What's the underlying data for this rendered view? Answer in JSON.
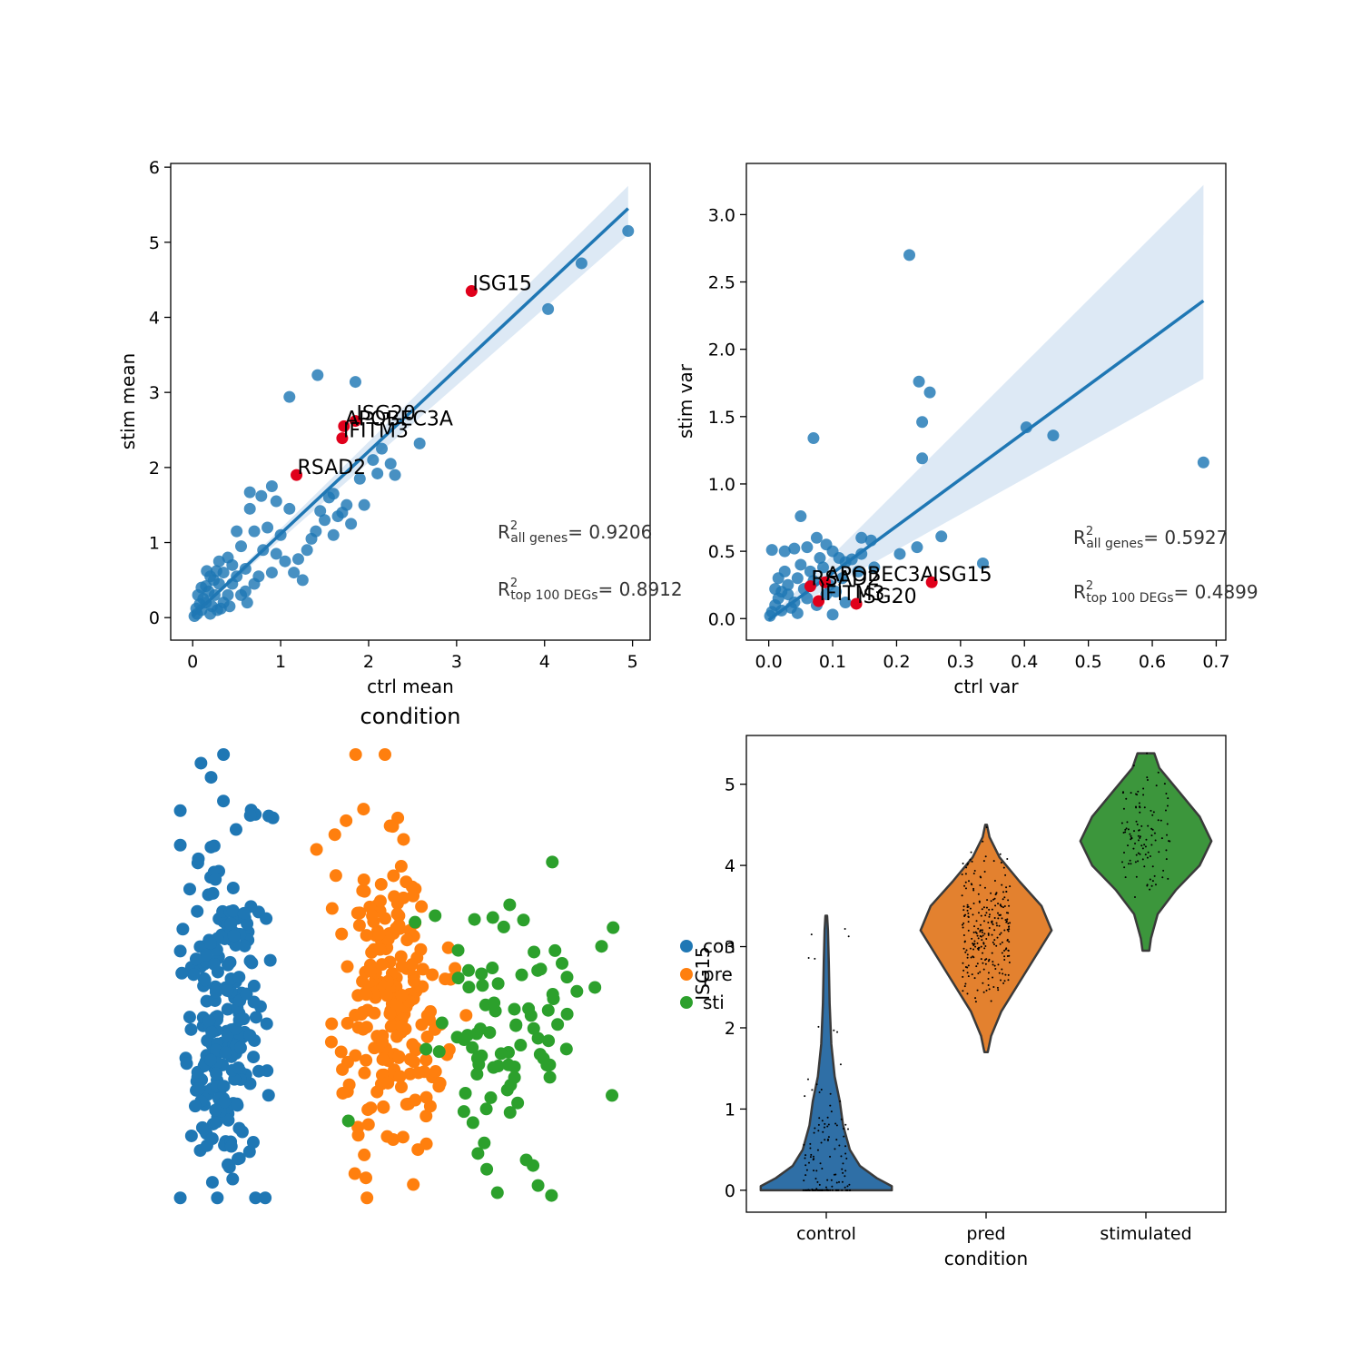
{
  "colors": {
    "blue": "#1f77b4",
    "orange": "#ff7f0e",
    "green": "#2ca02c",
    "highlight": "#e0001b",
    "band": "#c6dbef",
    "violin_blue": "#2f6fa6",
    "violin_orange": "#e3812f",
    "violin_green": "#3c963c"
  },
  "chart_data": [
    {
      "type": "scatter",
      "xlabel": "ctrl mean",
      "ylabel": "stim mean",
      "xlim": [
        -0.25,
        5.2
      ],
      "ylim": [
        -0.3,
        6.05
      ],
      "xticks": [
        0,
        1,
        2,
        3,
        4,
        5
      ],
      "yticks": [
        0,
        1,
        2,
        3,
        4,
        5,
        6
      ],
      "regression": {
        "x0": 0,
        "y0": 0.02,
        "x1": 4.95,
        "y1": 5.45,
        "band_hi": 5.75,
        "band_lo": 5.1
      },
      "points": [
        [
          4.95,
          5.15
        ],
        [
          4.42,
          4.72
        ],
        [
          4.04,
          4.11
        ],
        [
          1.42,
          3.23
        ],
        [
          1.85,
          3.14
        ],
        [
          1.1,
          2.94
        ],
        [
          2.58,
          2.32
        ],
        [
          2.05,
          2.1
        ],
        [
          2.1,
          1.92
        ],
        [
          1.9,
          1.85
        ],
        [
          2.15,
          2.25
        ],
        [
          2.25,
          2.05
        ],
        [
          1.6,
          1.65
        ],
        [
          1.55,
          1.6
        ],
        [
          1.95,
          1.5
        ],
        [
          1.45,
          1.42
        ],
        [
          0.9,
          1.75
        ],
        [
          0.95,
          1.55
        ],
        [
          1.4,
          1.15
        ],
        [
          1.0,
          1.1
        ],
        [
          1.35,
          1.05
        ],
        [
          1.25,
          0.5
        ],
        [
          1.2,
          0.78
        ],
        [
          0.65,
          1.67
        ],
        [
          0.78,
          1.62
        ],
        [
          0.65,
          1.45
        ],
        [
          1.1,
          1.45
        ],
        [
          0.95,
          0.85
        ],
        [
          0.7,
          1.15
        ],
        [
          0.55,
          0.95
        ],
        [
          0.5,
          1.15
        ],
        [
          0.4,
          0.8
        ],
        [
          0.3,
          0.75
        ],
        [
          0.2,
          0.55
        ],
        [
          0.35,
          0.6
        ],
        [
          0.45,
          0.45
        ],
        [
          0.6,
          0.65
        ],
        [
          0.8,
          0.9
        ],
        [
          0.85,
          1.2
        ],
        [
          1.05,
          0.75
        ],
        [
          1.15,
          0.6
        ],
        [
          1.3,
          0.9
        ],
        [
          0.75,
          0.55
        ],
        [
          0.25,
          0.3
        ],
        [
          0.15,
          0.2
        ],
        [
          0.1,
          0.1
        ],
        [
          0.05,
          0.05
        ],
        [
          0.02,
          0.02
        ],
        [
          0.3,
          0.45
        ],
        [
          0.18,
          0.35
        ],
        [
          0.22,
          0.15
        ],
        [
          0.12,
          0.25
        ],
        [
          0.4,
          0.3
        ],
        [
          0.5,
          0.55
        ],
        [
          0.08,
          0.18
        ],
        [
          0.28,
          0.1
        ],
        [
          0.35,
          0.2
        ],
        [
          0.15,
          0.42
        ],
        [
          0.6,
          0.35
        ],
        [
          0.06,
          0.3
        ],
        [
          0.45,
          0.7
        ],
        [
          0.7,
          0.45
        ],
        [
          1.5,
          1.3
        ],
        [
          1.65,
          1.35
        ],
        [
          1.75,
          1.5
        ],
        [
          1.8,
          1.25
        ],
        [
          1.7,
          1.4
        ],
        [
          2.3,
          1.9
        ],
        [
          0.9,
          0.6
        ],
        [
          1.6,
          1.1
        ],
        [
          0.55,
          0.3
        ],
        [
          0.2,
          0.05
        ],
        [
          0.32,
          0.12
        ],
        [
          0.04,
          0.12
        ],
        [
          0.24,
          0.5
        ],
        [
          0.1,
          0.4
        ],
        [
          0.42,
          0.15
        ],
        [
          0.62,
          0.2
        ],
        [
          0.16,
          0.62
        ],
        [
          0.27,
          0.62
        ]
      ],
      "highlights": [
        {
          "label": "ISG15",
          "x": 3.17,
          "y": 4.35
        },
        {
          "label": "ISG20",
          "x": 1.85,
          "y": 2.62
        },
        {
          "label": "APOBEC3A",
          "x": 1.72,
          "y": 2.55
        },
        {
          "label": "IFITM3",
          "x": 1.7,
          "y": 2.39
        },
        {
          "label": "RSAD2",
          "x": 1.18,
          "y": 1.9
        }
      ],
      "r2_all_label": "all genes",
      "r2_all_value": "= 0.9206",
      "r2_top_label": "top 100 DEGs",
      "r2_top_value": "= 0.8912"
    },
    {
      "type": "scatter",
      "xlabel": "ctrl var",
      "ylabel": "stim var",
      "xlim": [
        -0.035,
        0.715
      ],
      "ylim": [
        -0.16,
        3.38
      ],
      "xticks": [
        0.0,
        0.1,
        0.2,
        0.3,
        0.4,
        0.5,
        0.6,
        0.7
      ],
      "yticks": [
        0.0,
        0.5,
        1.0,
        1.5,
        2.0,
        2.5,
        3.0
      ],
      "regression": {
        "x0": 0,
        "y0": -0.01,
        "x1": 0.68,
        "y1": 2.36,
        "band_hi": 3.22,
        "band_lo": 1.78
      },
      "points": [
        [
          0.22,
          2.7
        ],
        [
          0.235,
          1.76
        ],
        [
          0.252,
          1.68
        ],
        [
          0.24,
          1.46
        ],
        [
          0.07,
          1.34
        ],
        [
          0.24,
          1.19
        ],
        [
          0.403,
          1.42
        ],
        [
          0.445,
          1.36
        ],
        [
          0.68,
          1.16
        ],
        [
          0.335,
          0.41
        ],
        [
          0.27,
          0.61
        ],
        [
          0.232,
          0.53
        ],
        [
          0.205,
          0.48
        ],
        [
          0.145,
          0.6
        ],
        [
          0.16,
          0.58
        ],
        [
          0.145,
          0.48
        ],
        [
          0.05,
          0.76
        ],
        [
          0.005,
          0.51
        ],
        [
          0.025,
          0.5
        ],
        [
          0.04,
          0.52
        ],
        [
          0.06,
          0.53
        ],
        [
          0.075,
          0.6
        ],
        [
          0.09,
          0.55
        ],
        [
          0.1,
          0.5
        ],
        [
          0.11,
          0.45
        ],
        [
          0.12,
          0.42
        ],
        [
          0.13,
          0.44
        ],
        [
          0.085,
          0.38
        ],
        [
          0.065,
          0.35
        ],
        [
          0.045,
          0.3
        ],
        [
          0.03,
          0.25
        ],
        [
          0.02,
          0.2
        ],
        [
          0.015,
          0.15
        ],
        [
          0.01,
          0.1
        ],
        [
          0.005,
          0.05
        ],
        [
          0.002,
          0.02
        ],
        [
          0.055,
          0.22
        ],
        [
          0.04,
          0.12
        ],
        [
          0.025,
          0.35
        ],
        [
          0.07,
          0.28
        ],
        [
          0.095,
          0.25
        ],
        [
          0.105,
          0.2
        ],
        [
          0.035,
          0.08
        ],
        [
          0.015,
          0.3
        ],
        [
          0.06,
          0.15
        ],
        [
          0.1,
          0.03
        ],
        [
          0.12,
          0.12
        ],
        [
          0.08,
          0.45
        ],
        [
          0.05,
          0.4
        ],
        [
          0.165,
          0.38
        ],
        [
          0.02,
          0.06
        ],
        [
          0.03,
          0.18
        ],
        [
          0.045,
          0.04
        ],
        [
          0.01,
          0.22
        ],
        [
          0.075,
          0.1
        ],
        [
          0.14,
          0.35
        ],
        [
          0.115,
          0.3
        ],
        [
          0.09,
          0.18
        ]
      ],
      "highlights": [
        {
          "label": "APOBEC3A",
          "x": 0.088,
          "y": 0.27
        },
        {
          "label": "ISG15",
          "x": 0.255,
          "y": 0.27
        },
        {
          "label": "RSAD2",
          "x": 0.065,
          "y": 0.24
        },
        {
          "label": "IFITM3",
          "x": 0.078,
          "y": 0.13
        },
        {
          "label": "ISG20",
          "x": 0.137,
          "y": 0.11
        }
      ],
      "r2_all_label": "all genes",
      "r2_all_value": "= 0.5927",
      "r2_top_label": "top 100 DEGs",
      "r2_top_value": "= 0.4899"
    },
    {
      "type": "scatter",
      "title": "condition",
      "legend": [
        "control",
        "pred",
        "stimulated"
      ],
      "legend_visible": [
        "con",
        "pre",
        "sti"
      ],
      "legend_placement": "right",
      "clusters": [
        {
          "series": "control",
          "color_key": "blue",
          "cx": 0.11,
          "cy": 0.58,
          "sx": 0.04,
          "sy": 0.2,
          "n": 230
        },
        {
          "series": "pred",
          "color_key": "orange",
          "cx": 0.46,
          "cy": 0.55,
          "sx": 0.06,
          "sy": 0.16,
          "n": 210
        },
        {
          "series": "stimulated",
          "color_key": "green",
          "cx": 0.72,
          "cy": 0.62,
          "sx": 0.1,
          "sy": 0.18,
          "n": 90
        }
      ]
    },
    {
      "type": "violin",
      "xlabel": "condition",
      "ylabel": "ISG15",
      "categories": [
        "control",
        "pred",
        "stimulated"
      ],
      "ylim": [
        -0.27,
        5.6
      ],
      "yticks": [
        0,
        1,
        2,
        3,
        4,
        5
      ],
      "violins": [
        {
          "name": "control",
          "color_key": "violin_blue",
          "min": 0,
          "max": 3.38,
          "profile": [
            [
              0,
              0.39
            ],
            [
              0.05,
              0.39
            ],
            [
              0.15,
              0.3
            ],
            [
              0.3,
              0.2
            ],
            [
              0.5,
              0.14
            ],
            [
              0.8,
              0.1
            ],
            [
              1.1,
              0.08
            ],
            [
              1.4,
              0.05
            ],
            [
              1.8,
              0.03
            ],
            [
              2.3,
              0.02
            ],
            [
              2.8,
              0.015
            ],
            [
              3.2,
              0.01
            ],
            [
              3.38,
              0.005
            ]
          ],
          "n_points": 140
        },
        {
          "name": "pred",
          "color_key": "violin_orange",
          "min": 1.7,
          "max": 4.5,
          "profile": [
            [
              1.7,
              0.01
            ],
            [
              1.9,
              0.03
            ],
            [
              2.2,
              0.09
            ],
            [
              2.5,
              0.18
            ],
            [
              2.9,
              0.3
            ],
            [
              3.2,
              0.39
            ],
            [
              3.5,
              0.33
            ],
            [
              3.8,
              0.2
            ],
            [
              4.1,
              0.08
            ],
            [
              4.35,
              0.02
            ],
            [
              4.5,
              0.005
            ]
          ],
          "n_points": 260
        },
        {
          "name": "stimulated",
          "color_key": "violin_green",
          "min": 2.95,
          "max": 5.38,
          "profile": [
            [
              2.95,
              0.02
            ],
            [
              3.1,
              0.03
            ],
            [
              3.4,
              0.07
            ],
            [
              3.7,
              0.18
            ],
            [
              4.0,
              0.32
            ],
            [
              4.3,
              0.39
            ],
            [
              4.6,
              0.32
            ],
            [
              4.9,
              0.2
            ],
            [
              5.2,
              0.08
            ],
            [
              5.38,
              0.05
            ]
          ],
          "n_points": 110
        }
      ]
    }
  ]
}
